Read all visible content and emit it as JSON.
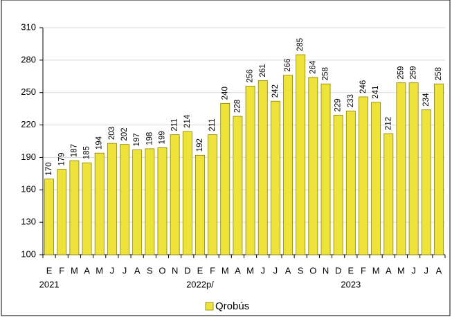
{
  "chart_data": {
    "type": "bar",
    "categories": [
      "E",
      "F",
      "M",
      "A",
      "M",
      "J",
      "J",
      "A",
      "S",
      "O",
      "N",
      "D",
      "E",
      "F",
      "M",
      "A",
      "M",
      "J",
      "J",
      "A",
      "S",
      "O",
      "N",
      "D",
      "E",
      "F",
      "M",
      "A",
      "M",
      "J",
      "J",
      "A"
    ],
    "category_groups": [
      "2021",
      null,
      null,
      null,
      null,
      null,
      null,
      null,
      null,
      null,
      null,
      null,
      "2022p/",
      null,
      null,
      null,
      null,
      null,
      null,
      null,
      null,
      null,
      null,
      null,
      "2023",
      null,
      null,
      null,
      null,
      null,
      null,
      null
    ],
    "series": [
      {
        "name": "Qrobús",
        "color": "#eee33a",
        "values": [
          170,
          179,
          187,
          185,
          194,
          203,
          202,
          197,
          198,
          199,
          211,
          214,
          192,
          211,
          240,
          228,
          256,
          261,
          242,
          266,
          285,
          264,
          258,
          229,
          233,
          246,
          241,
          212,
          259,
          259,
          234,
          258
        ]
      }
    ],
    "ylim": [
      100,
      310
    ],
    "yticks": [
      100,
      130,
      160,
      190,
      220,
      250,
      280,
      310
    ],
    "grid": true,
    "legend": "bottom"
  }
}
